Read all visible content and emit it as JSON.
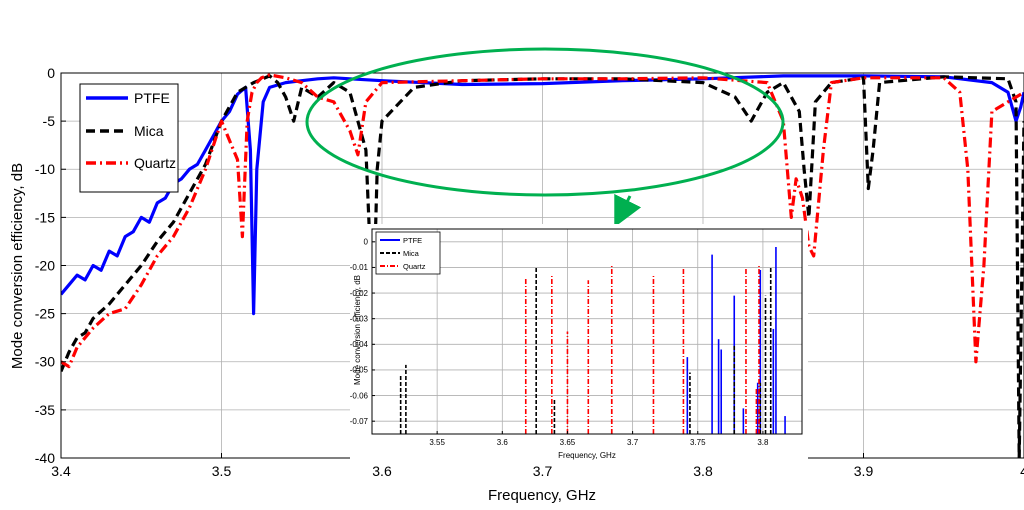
{
  "chart_data": [
    {
      "type": "line",
      "title": "",
      "xlabel": "Frequency, GHz",
      "ylabel": "Mode conversion efficiency, dB",
      "xlim": [
        3.4,
        4.0
      ],
      "ylim": [
        -40,
        0
      ],
      "xticks": [
        "3.4",
        "3.5",
        "3.6",
        "3.7",
        "3.8",
        "3.9",
        "4"
      ],
      "yticks": [
        "0",
        "-5",
        "-10",
        "-15",
        "-20",
        "-25",
        "-30",
        "-35",
        "-40"
      ],
      "grid": true,
      "legend_position": "top-left",
      "series": [
        {
          "name": "PTFE",
          "color": "#0000ff",
          "dash": "solid",
          "x": [
            3.4,
            3.405,
            3.41,
            3.415,
            3.42,
            3.425,
            3.43,
            3.435,
            3.44,
            3.445,
            3.45,
            3.455,
            3.46,
            3.465,
            3.47,
            3.475,
            3.48,
            3.485,
            3.49,
            3.495,
            3.5,
            3.505,
            3.51,
            3.515,
            3.518,
            3.52,
            3.522,
            3.526,
            3.53,
            3.54,
            3.55,
            3.56,
            3.57,
            3.58,
            3.6,
            3.65,
            3.7,
            3.75,
            3.8,
            3.85,
            3.9,
            3.95,
            3.98,
            3.99,
            3.995,
            3.998,
            4.0
          ],
          "y": [
            -23,
            -22,
            -21,
            -21.5,
            -20,
            -20.5,
            -18.5,
            -19,
            -17,
            -16.5,
            -15,
            -15.5,
            -13.5,
            -13,
            -11.5,
            -11,
            -10,
            -9.5,
            -8,
            -6.5,
            -5,
            -4,
            -2.2,
            -1.5,
            -8,
            -25,
            -10,
            -3,
            -1.5,
            -1,
            -0.8,
            -0.6,
            -0.5,
            -0.6,
            -0.8,
            -1.2,
            -1.1,
            -0.8,
            -0.6,
            -0.3,
            -0.3,
            -0.4,
            -1,
            -2,
            -5,
            -3.5,
            -2
          ]
        },
        {
          "name": "Mica",
          "color": "#000000",
          "dash": "dashed",
          "x": [
            3.4,
            3.405,
            3.41,
            3.415,
            3.42,
            3.43,
            3.44,
            3.45,
            3.46,
            3.47,
            3.48,
            3.49,
            3.5,
            3.51,
            3.52,
            3.53,
            3.535,
            3.54,
            3.545,
            3.55,
            3.56,
            3.57,
            3.58,
            3.59,
            3.593,
            3.595,
            3.597,
            3.6,
            3.62,
            3.65,
            3.7,
            3.75,
            3.8,
            3.82,
            3.83,
            3.84,
            3.85,
            3.86,
            3.863,
            3.866,
            3.87,
            3.88,
            3.9,
            3.903,
            3.906,
            3.91,
            3.95,
            3.99,
            3.995,
            3.997,
            4.0
          ],
          "y": [
            -31,
            -29,
            -27.5,
            -27,
            -25.5,
            -24,
            -22,
            -20,
            -17.5,
            -15.5,
            -12.5,
            -9.5,
            -5,
            -2,
            -1,
            -0.3,
            -1,
            -2.5,
            -5,
            -1.5,
            -2.5,
            -1,
            -2,
            -8,
            -20,
            -22,
            -10,
            -5,
            -1.5,
            -0.8,
            -0.6,
            -0.6,
            -1,
            -2.5,
            -5,
            -2,
            -1,
            -4,
            -10,
            -15,
            -3,
            -1,
            -0.5,
            -12,
            -8,
            -1,
            -0.4,
            -0.6,
            -3,
            -40,
            -5
          ]
        },
        {
          "name": "Quartz",
          "color": "#ff0000",
          "dash": "dashdot",
          "x": [
            3.4,
            3.405,
            3.41,
            3.42,
            3.43,
            3.44,
            3.45,
            3.46,
            3.47,
            3.48,
            3.49,
            3.5,
            3.505,
            3.51,
            3.513,
            3.516,
            3.519,
            3.522,
            3.525,
            3.53,
            3.54,
            3.55,
            3.56,
            3.57,
            3.58,
            3.585,
            3.59,
            3.6,
            3.65,
            3.7,
            3.75,
            3.8,
            3.84,
            3.85,
            3.855,
            3.858,
            3.862,
            3.866,
            3.869,
            3.875,
            3.88,
            3.9,
            3.95,
            3.96,
            3.965,
            3.97,
            3.975,
            3.98,
            4.0
          ],
          "y": [
            -30,
            -30.5,
            -28.5,
            -26.5,
            -25,
            -24.5,
            -22,
            -19,
            -17,
            -14,
            -10,
            -5,
            -7,
            -9,
            -17,
            -5,
            -2,
            -1,
            -0.5,
            -0.2,
            -0.5,
            -1,
            -2.5,
            -3,
            -6,
            -8.5,
            -3,
            -1,
            -0.8,
            -0.6,
            -0.6,
            -0.5,
            -1,
            -5,
            -15,
            -11,
            -13,
            -18,
            -19,
            -8,
            -1,
            -0.5,
            -0.5,
            -2,
            -10,
            -30,
            -20,
            -4,
            -2
          ]
        }
      ]
    },
    {
      "type": "line",
      "title": "",
      "xlabel": "Frequency, GHz",
      "ylabel": "Mode conversion efficiency, dB",
      "xlim": [
        3.5,
        3.83
      ],
      "ylim": [
        -0.075,
        0.005
      ],
      "xticks": [
        "3.55",
        "3.6",
        "3.65",
        "3.7",
        "3.75",
        "3.8"
      ],
      "yticks": [
        "0",
        "-0.01",
        "-0.02",
        "-0.03",
        "-0.04",
        "-0.05",
        "-0.06",
        "-0.07"
      ],
      "grid": true,
      "legend_position": "top-left",
      "series": [
        {
          "name": "PTFE",
          "color": "#0000ff",
          "dash": "solid",
          "spikes": [
            [
              3.742,
              -0.045
            ],
            [
              3.761,
              -0.005
            ],
            [
              3.766,
              -0.038
            ],
            [
              3.768,
              -0.042
            ],
            [
              3.778,
              -0.021
            ],
            [
              3.785,
              -0.065
            ],
            [
              3.796,
              -0.055
            ],
            [
              3.798,
              -0.011
            ],
            [
              3.808,
              -0.034
            ],
            [
              3.81,
              -0.002
            ],
            [
              3.817,
              -0.068
            ]
          ]
        },
        {
          "name": "Mica",
          "color": "#000000",
          "dash": "dashed",
          "spikes": [
            [
              3.522,
              -0.052
            ],
            [
              3.526,
              -0.048
            ],
            [
              3.626,
              -0.01
            ],
            [
              3.64,
              -0.061
            ],
            [
              3.744,
              -0.051
            ],
            [
              3.778,
              -0.04
            ],
            [
              3.798,
              -0.055
            ],
            [
              3.802,
              -0.021
            ],
            [
              3.806,
              -0.01
            ]
          ]
        },
        {
          "name": "Quartz",
          "color": "#ff0000",
          "dash": "dashdot",
          "spikes": [
            [
              3.618,
              -0.014
            ],
            [
              3.638,
              -0.013
            ],
            [
              3.65,
              -0.035
            ],
            [
              3.666,
              -0.015
            ],
            [
              3.684,
              -0.009
            ],
            [
              3.684,
              -0.06
            ],
            [
              3.716,
              -0.013
            ],
            [
              3.739,
              -0.01
            ],
            [
              3.787,
              -0.01
            ],
            [
              3.795,
              -0.057
            ],
            [
              3.797,
              -0.009
            ]
          ]
        }
      ]
    }
  ],
  "colors": {
    "highlight_ellipse": "#00b050",
    "grid": "#b0b0b0"
  }
}
